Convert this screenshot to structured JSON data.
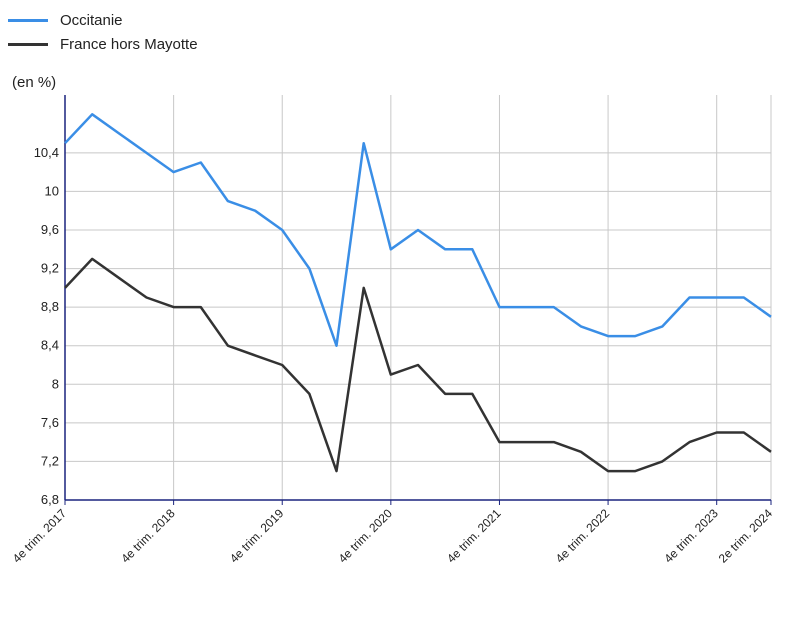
{
  "chart_data": {
    "type": "line",
    "ylabel": "(en %)",
    "ylim": [
      6.8,
      11.0
    ],
    "yticks": [
      "6,8",
      "7,2",
      "7,6",
      "8",
      "8,4",
      "8,8",
      "9,2",
      "9,6",
      "10",
      "10,4"
    ],
    "ytick_values": [
      6.8,
      7.2,
      7.6,
      8.0,
      8.4,
      8.8,
      9.2,
      9.6,
      10.0,
      10.4
    ],
    "xtick_labels": [
      {
        "index": 0,
        "label": "4e trim. 2017"
      },
      {
        "index": 4,
        "label": "4e trim. 2018"
      },
      {
        "index": 8,
        "label": "4e trim. 2019"
      },
      {
        "index": 12,
        "label": "4e trim. 2020"
      },
      {
        "index": 16,
        "label": "4e trim. 2021"
      },
      {
        "index": 20,
        "label": "4e trim. 2022"
      },
      {
        "index": 24,
        "label": "4e trim. 2023"
      },
      {
        "index": 26,
        "label": "2e trim. 2024"
      }
    ],
    "x": [
      "T4 2017",
      "T1 2018",
      "T2 2018",
      "T3 2018",
      "T4 2018",
      "T1 2019",
      "T2 2019",
      "T3 2019",
      "T4 2019",
      "T1 2020",
      "T2 2020",
      "T3 2020",
      "T4 2020",
      "T1 2021",
      "T2 2021",
      "T3 2021",
      "T4 2021",
      "T1 2022",
      "T2 2022",
      "T3 2022",
      "T4 2022",
      "T1 2023",
      "T2 2023",
      "T3 2023",
      "T4 2023",
      "T1 2024",
      "T2 2024"
    ],
    "series": [
      {
        "name": "Occitanie",
        "color": "#3a8ee6",
        "values": [
          10.5,
          10.8,
          10.6,
          10.4,
          10.2,
          10.3,
          9.9,
          9.8,
          9.6,
          9.2,
          8.4,
          10.5,
          9.4,
          9.6,
          9.4,
          9.4,
          8.8,
          8.8,
          8.8,
          8.6,
          8.5,
          8.5,
          8.6,
          8.9,
          8.9,
          8.9,
          8.7
        ]
      },
      {
        "name": "France hors Mayotte",
        "color": "#333333",
        "values": [
          9.0,
          9.3,
          9.1,
          8.9,
          8.8,
          8.8,
          8.4,
          8.3,
          8.2,
          7.9,
          7.1,
          9.0,
          8.1,
          8.2,
          7.9,
          7.9,
          7.4,
          7.4,
          7.4,
          7.3,
          7.1,
          7.1,
          7.2,
          7.4,
          7.5,
          7.5,
          7.3
        ]
      }
    ],
    "grid": true,
    "legend": "top-left"
  },
  "colors": {
    "axis": "#1a237e",
    "grid": "#c8c8c8"
  }
}
